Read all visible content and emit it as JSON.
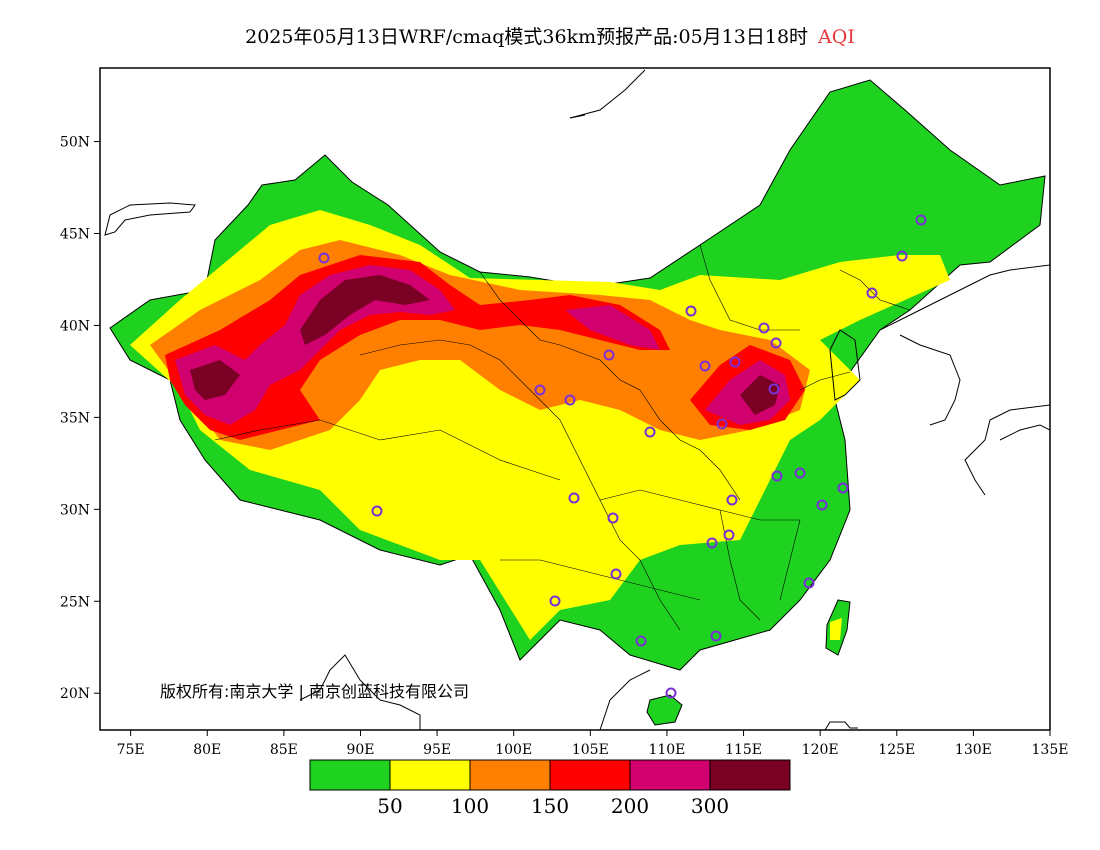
{
  "title": {
    "main": "2025年05月13日WRF/cmaq模式36km预报产品:05月13日18时",
    "highlight": "AQI"
  },
  "map": {
    "lon_range": [
      73,
      135
    ],
    "lat_range": [
      18,
      54
    ],
    "x_ticks": [
      "75E",
      "80E",
      "85E",
      "90E",
      "95E",
      "100E",
      "105E",
      "110E",
      "115E",
      "120E",
      "125E",
      "130E",
      "135E"
    ],
    "y_ticks": [
      "20N",
      "25N",
      "30N",
      "35N",
      "40N",
      "45N",
      "50N"
    ],
    "copyright": "版权所有:南京大学 | 南京创蓝科技有限公司"
  },
  "colorbar": {
    "colors": [
      "#1fd21f",
      "#ffff00",
      "#ff8000",
      "#ff0000",
      "#d0006f",
      "#7a0024"
    ],
    "labels": [
      "50",
      "100",
      "150",
      "200",
      "300"
    ]
  },
  "station_color": "#7b2fd6"
}
